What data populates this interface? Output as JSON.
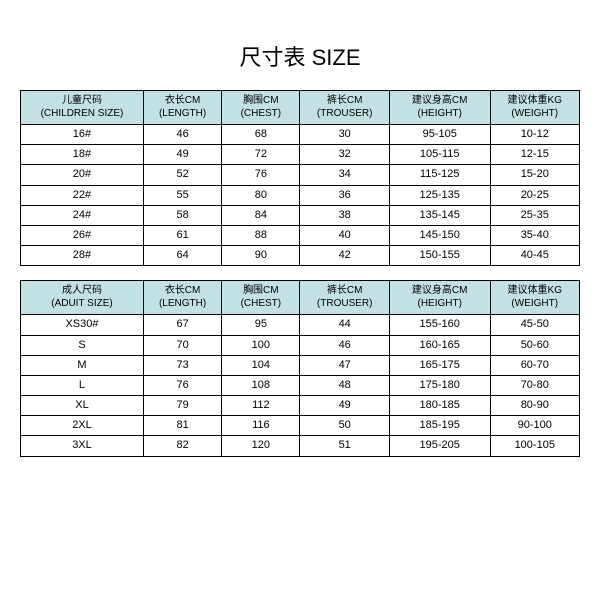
{
  "title": "尺寸表 SIZE",
  "colors": {
    "header_bg": "#c3e1e3",
    "border": "#000000",
    "text": "#000000",
    "background": "#ffffff"
  },
  "children_table": {
    "columns": [
      {
        "zh": "儿童尺码",
        "en": "(CHILDREN SIZE)"
      },
      {
        "zh": "衣长CM",
        "en": "(LENGTH)"
      },
      {
        "zh": "胸围CM",
        "en": "(CHEST)"
      },
      {
        "zh": "裤长CM",
        "en": "(TROUSER)"
      },
      {
        "zh": "建议身高CM",
        "en": "(HEIGHT)"
      },
      {
        "zh": "建议体重KG",
        "en": "(WEIGHT)"
      }
    ],
    "rows": [
      [
        "16#",
        "46",
        "68",
        "30",
        "95-105",
        "10-12"
      ],
      [
        "18#",
        "49",
        "72",
        "32",
        "105-115",
        "12-15"
      ],
      [
        "20#",
        "52",
        "76",
        "34",
        "115-125",
        "15-20"
      ],
      [
        "22#",
        "55",
        "80",
        "36",
        "125-135",
        "20-25"
      ],
      [
        "24#",
        "58",
        "84",
        "38",
        "135-145",
        "25-35"
      ],
      [
        "26#",
        "61",
        "88",
        "40",
        "145-150",
        "35-40"
      ],
      [
        "28#",
        "64",
        "90",
        "42",
        "150-155",
        "40-45"
      ]
    ]
  },
  "adult_table": {
    "columns": [
      {
        "zh": "成人尺码",
        "en": "(ADUIT SIZE)"
      },
      {
        "zh": "衣长CM",
        "en": "(LENGTH)"
      },
      {
        "zh": "胸围CM",
        "en": "(CHEST)"
      },
      {
        "zh": "裤长CM",
        "en": "(TROUSER)"
      },
      {
        "zh": "建议身高CM",
        "en": "(HEIGHT)"
      },
      {
        "zh": "建议体重KG",
        "en": "(WEIGHT)"
      }
    ],
    "rows": [
      [
        "XS30#",
        "67",
        "95",
        "44",
        "155-160",
        "45-50"
      ],
      [
        "S",
        "70",
        "100",
        "46",
        "160-165",
        "50-60"
      ],
      [
        "M",
        "73",
        "104",
        "47",
        "165-175",
        "60-70"
      ],
      [
        "L",
        "76",
        "108",
        "48",
        "175-180",
        "70-80"
      ],
      [
        "XL",
        "79",
        "112",
        "49",
        "180-185",
        "80-90"
      ],
      [
        "2XL",
        "81",
        "116",
        "50",
        "185-195",
        "90-100"
      ],
      [
        "3XL",
        "82",
        "120",
        "51",
        "195-205",
        "100-105"
      ]
    ]
  },
  "col_widths": [
    "22%",
    "14%",
    "14%",
    "16%",
    "18%",
    "16%"
  ]
}
